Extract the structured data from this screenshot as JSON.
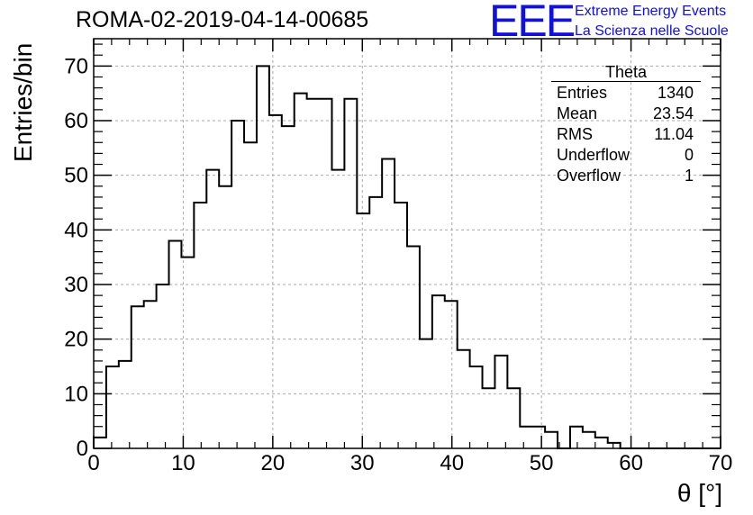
{
  "header": {
    "title": "ROMA-02-2019-04-14-00685",
    "logo_text": "EEE",
    "logo_line1": "Extreme Energy Events",
    "logo_line2": "La Scienza nelle Scuole"
  },
  "stats_box": {
    "title": "Theta",
    "rows": [
      {
        "label": "Entries",
        "value": "1340"
      },
      {
        "label": "Mean",
        "value": "23.54"
      },
      {
        "label": "RMS",
        "value": "11.04"
      },
      {
        "label": "Underflow",
        "value": "0"
      },
      {
        "label": "Overflow",
        "value": "1"
      }
    ]
  },
  "chart_data": {
    "type": "bar",
    "style": "step-histogram",
    "xlabel": "θ [°]",
    "ylabel": "Entries/bin",
    "xlim": [
      0,
      70
    ],
    "ylim": [
      0,
      75
    ],
    "bin_width": 1.4,
    "values": [
      2,
      15,
      16,
      26,
      27,
      30,
      38,
      35,
      45,
      51,
      48,
      60,
      56,
      70,
      61,
      59,
      65,
      64,
      64,
      51,
      64,
      43,
      46,
      53,
      45,
      37,
      20,
      28,
      27,
      18,
      15,
      11,
      17,
      11,
      4,
      4,
      3,
      0,
      4,
      3,
      2,
      1,
      0,
      0,
      0,
      0,
      0,
      0,
      0,
      0
    ],
    "x_ticks": [
      "0",
      "10",
      "20",
      "30",
      "40",
      "50",
      "60",
      "70"
    ],
    "y_ticks": [
      "0",
      "10",
      "20",
      "30",
      "40",
      "50",
      "60",
      "70"
    ],
    "grid": true,
    "line_color": "#000000",
    "grid_color": "#aaaaaa",
    "legend": "top-right"
  }
}
